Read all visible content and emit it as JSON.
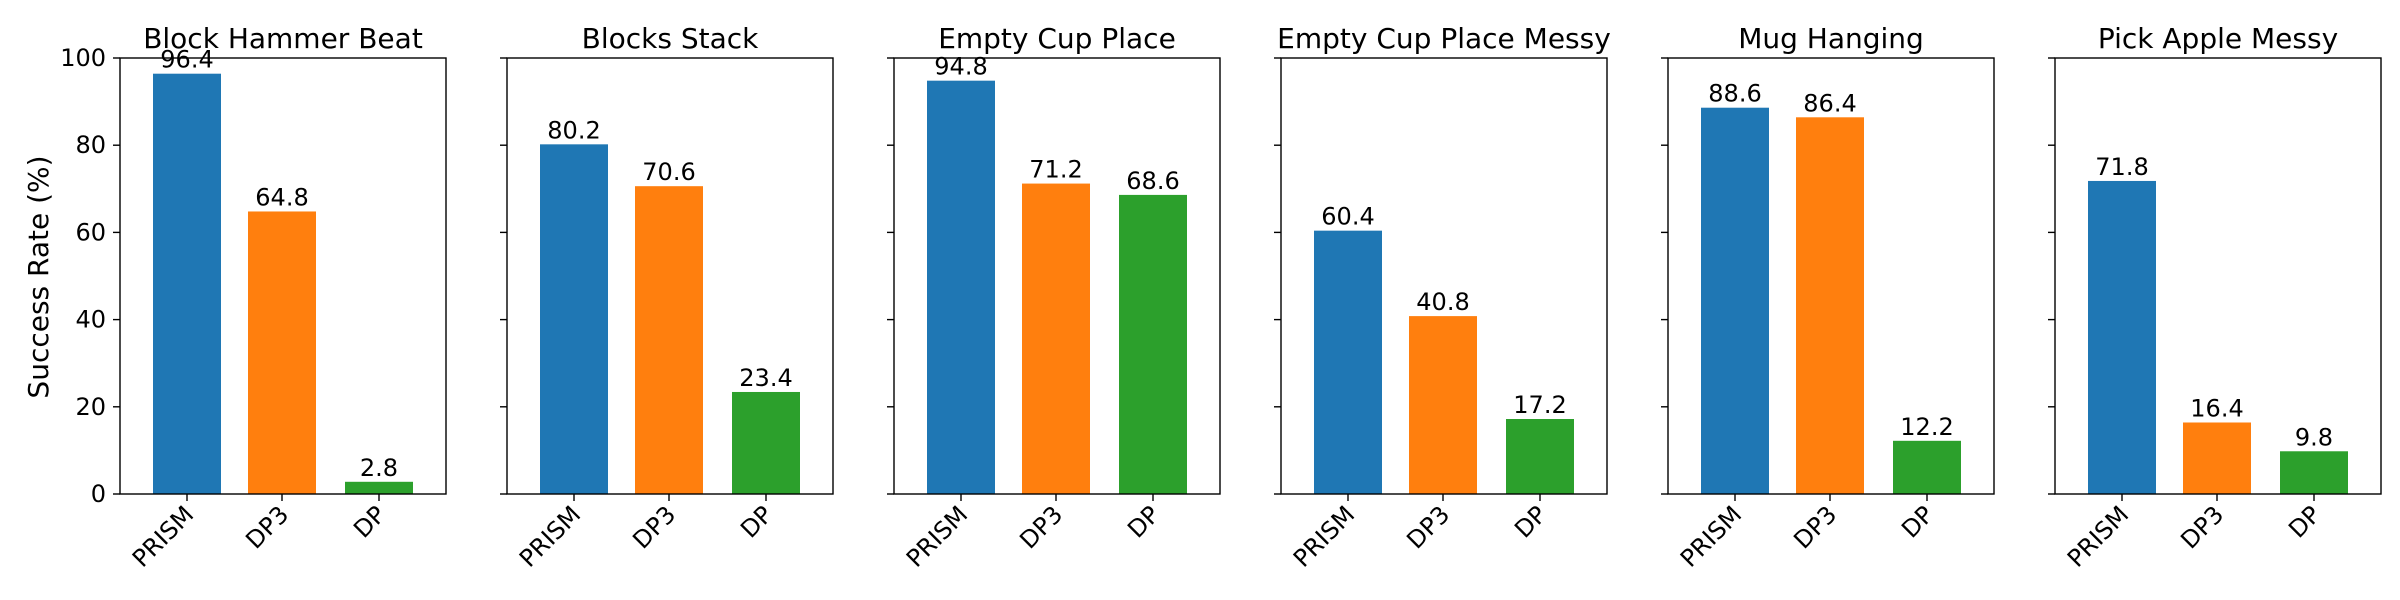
{
  "chart_data": {
    "type": "bar",
    "ylabel": "Success Rate (%)",
    "ylim": [
      0,
      100
    ],
    "yticks": [
      0,
      20,
      40,
      60,
      80,
      100
    ],
    "categories": [
      "PRISM",
      "DP3",
      "DP"
    ],
    "colors": [
      "#1f77b4",
      "#ff7f0e",
      "#2ca02c"
    ],
    "grid": false,
    "panels": [
      {
        "title": "Block Hammer Beat",
        "values": [
          96.4,
          64.8,
          2.8
        ]
      },
      {
        "title": "Blocks Stack",
        "values": [
          80.2,
          70.6,
          23.4
        ]
      },
      {
        "title": "Empty Cup Place",
        "values": [
          94.8,
          71.2,
          68.6
        ]
      },
      {
        "title": "Empty Cup Place Messy",
        "values": [
          60.4,
          40.8,
          17.2
        ]
      },
      {
        "title": "Mug Hanging",
        "values": [
          88.6,
          86.4,
          12.2
        ]
      },
      {
        "title": "Pick Apple Messy",
        "values": [
          71.8,
          16.4,
          9.8
        ]
      }
    ]
  }
}
